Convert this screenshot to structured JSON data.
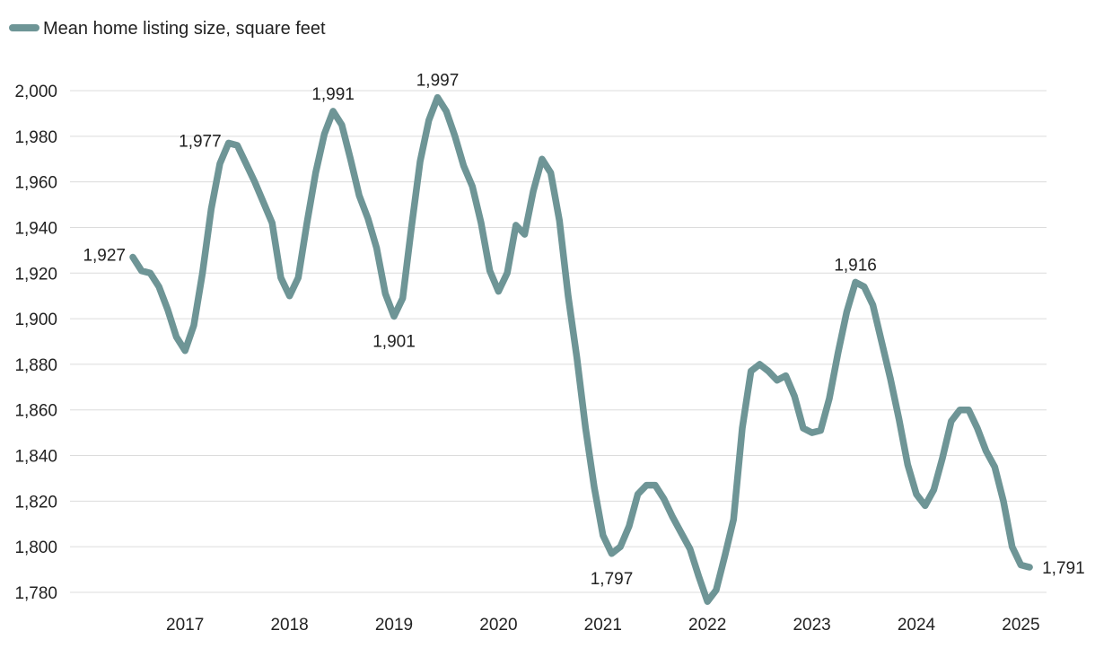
{
  "chart_data": {
    "type": "line",
    "title": "",
    "xlabel": "",
    "ylabel": "",
    "legend": {
      "label": "Mean home listing size, square feet",
      "placement": "top-left"
    },
    "color": "#6e9596",
    "grid": true,
    "ylim": [
      1780,
      2000
    ],
    "y_ticks": [
      2000,
      1980,
      1960,
      1940,
      1920,
      1900,
      1880,
      1860,
      1840,
      1820,
      1800,
      1780
    ],
    "y_tick_labels": [
      "2,000",
      "1,980",
      "1,960",
      "1,940",
      "1,920",
      "1,900",
      "1,880",
      "1,860",
      "1,840",
      "1,820",
      "1,800",
      "1,780"
    ],
    "x_ticks": [
      "2017",
      "2018",
      "2019",
      "2020",
      "2021",
      "2022",
      "2023",
      "2024",
      "2025"
    ],
    "start": "2016-07",
    "series": [
      {
        "name": "Mean home listing size, square feet",
        "values": [
          1927,
          1921,
          1920,
          1914,
          1904,
          1892,
          1886,
          1897,
          1920,
          1948,
          1968,
          1977,
          1976,
          1968,
          1960,
          1951,
          1942,
          1918,
          1910,
          1918,
          1942,
          1964,
          1981,
          1991,
          1985,
          1970,
          1954,
          1944,
          1931,
          1911,
          1901,
          1909,
          1940,
          1969,
          1987,
          1997,
          1991,
          1980,
          1967,
          1958,
          1942,
          1921,
          1912,
          1920,
          1941,
          1937,
          1956,
          1970,
          1964,
          1943,
          1910,
          1883,
          1852,
          1826,
          1805,
          1797,
          1800,
          1809,
          1823,
          1827,
          1827,
          1821,
          1813,
          1806,
          1799,
          1787,
          1776,
          1781,
          1796,
          1812,
          1852,
          1877,
          1880,
          1877,
          1873,
          1875,
          1866,
          1852,
          1850,
          1851,
          1865,
          1885,
          1903,
          1916,
          1914,
          1906,
          1890,
          1874,
          1856,
          1836,
          1823,
          1818,
          1825,
          1839,
          1855,
          1860,
          1860,
          1852,
          1842,
          1835,
          1820,
          1800,
          1792,
          1791
        ]
      }
    ],
    "annotations": [
      {
        "index": 0,
        "text": "1,927",
        "pos": "left"
      },
      {
        "index": 11,
        "text": "1,977",
        "pos": "left"
      },
      {
        "index": 23,
        "text": "1,991",
        "pos": "above"
      },
      {
        "index": 30,
        "text": "1,901",
        "pos": "below"
      },
      {
        "index": 35,
        "text": "1,997",
        "pos": "above"
      },
      {
        "index": 55,
        "text": "1,797",
        "pos": "below"
      },
      {
        "index": 83,
        "text": "1,916",
        "pos": "above"
      },
      {
        "index": 103,
        "text": "1,791",
        "pos": "right"
      }
    ]
  }
}
